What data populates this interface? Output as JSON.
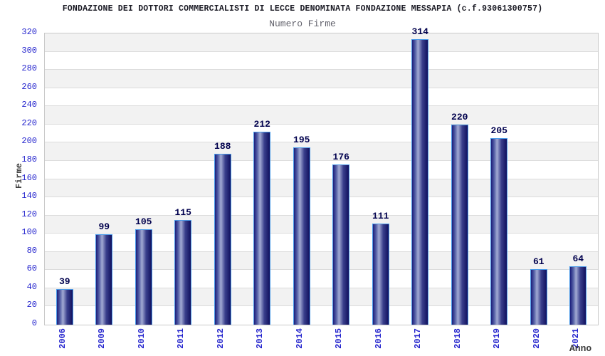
{
  "chart_data": {
    "type": "bar",
    "title": "FONDAZIONE DEI DOTTORI COMMERCIALISTI DI LECCE DENOMINATA FONDAZIONE MESSAPIA (c.f.93061300757)",
    "subtitle": "Numero Firme",
    "xlabel": "Anno",
    "ylabel": "Firme",
    "categories": [
      "2006",
      "2009",
      "2010",
      "2011",
      "2012",
      "2013",
      "2014",
      "2015",
      "2016",
      "2017",
      "2018",
      "2019",
      "2020",
      "2021"
    ],
    "values": [
      39,
      99,
      105,
      115,
      188,
      212,
      195,
      176,
      111,
      314,
      220,
      205,
      61,
      64
    ],
    "ylim": [
      0,
      320
    ],
    "ytick_step": 20,
    "legend": "none",
    "grid": "horizontal-bands-alternating",
    "colors": {
      "bar_gradient_dark_left": "#1b1e7c",
      "bar_gradient_mid": "#5560a6",
      "bar_gradient_light": "#a3abd4",
      "bar_gradient_mid_right": "#3a3f8c",
      "bar_gradient_dark_right": "#10105e",
      "bar_border": "#4a9ae8",
      "value_label": "#00004d",
      "axis_tick": "#2323cd",
      "band_gray": "#f2f2f2",
      "plot_border": "#c9c9c9",
      "title_text": "#1a1a24",
      "subtitle_text": "#62626c",
      "axis_title_text": "#3a3a3a"
    }
  }
}
